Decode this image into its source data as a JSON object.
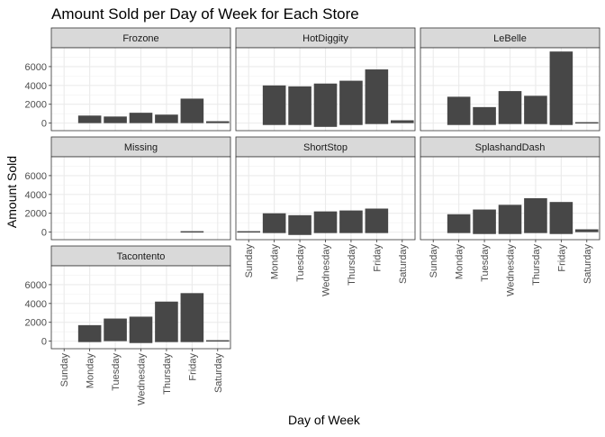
{
  "chart_data": {
    "type": "bar",
    "title": "Amount Sold per Day of Week for Each Store",
    "xlabel": "Day of Week",
    "ylabel": "Amount Sold",
    "categories": [
      "Sunday",
      "Monday",
      "Tuesday",
      "Wednesday",
      "Thursday",
      "Friday",
      "Saturday"
    ],
    "y_ticks": [
      0,
      2000,
      4000,
      6000
    ],
    "ylim": [
      -800,
      8000
    ],
    "grid": true,
    "bar_color": "#474747",
    "strip_color": "#d9d9d9",
    "panels": [
      {
        "name": "Frozone",
        "values": [
          0,
          800,
          700,
          1100,
          900,
          2600,
          200
        ],
        "lows": [
          0,
          0,
          0,
          0,
          0,
          0,
          0
        ]
      },
      {
        "name": "HotDiggity",
        "values": [
          0,
          4000,
          3900,
          4200,
          4500,
          5700,
          300
        ],
        "lows": [
          0,
          -200,
          -200,
          -400,
          -200,
          -100,
          0
        ]
      },
      {
        "name": "LeBelle",
        "values": [
          0,
          2800,
          1700,
          3400,
          2900,
          7600,
          100
        ],
        "lows": [
          0,
          -200,
          -200,
          -100,
          -100,
          -200,
          0
        ]
      },
      {
        "name": "Missing",
        "values": [
          0,
          0,
          0,
          0,
          0,
          100,
          0
        ],
        "lows": [
          0,
          0,
          0,
          0,
          0,
          0,
          0
        ]
      },
      {
        "name": "ShortStop",
        "values": [
          100,
          2000,
          1800,
          2200,
          2300,
          2500,
          0
        ],
        "lows": [
          0,
          -100,
          -300,
          -100,
          -100,
          -100,
          0
        ]
      },
      {
        "name": "SplashandDash",
        "values": [
          0,
          1900,
          2400,
          2900,
          3600,
          3200,
          300
        ],
        "lows": [
          0,
          -100,
          -200,
          -200,
          -100,
          -200,
          0
        ]
      },
      {
        "name": "Tacontento",
        "values": [
          0,
          1700,
          2400,
          2600,
          4200,
          5100,
          100
        ],
        "lows": [
          0,
          -100,
          0,
          -200,
          -100,
          -100,
          0
        ]
      }
    ]
  }
}
